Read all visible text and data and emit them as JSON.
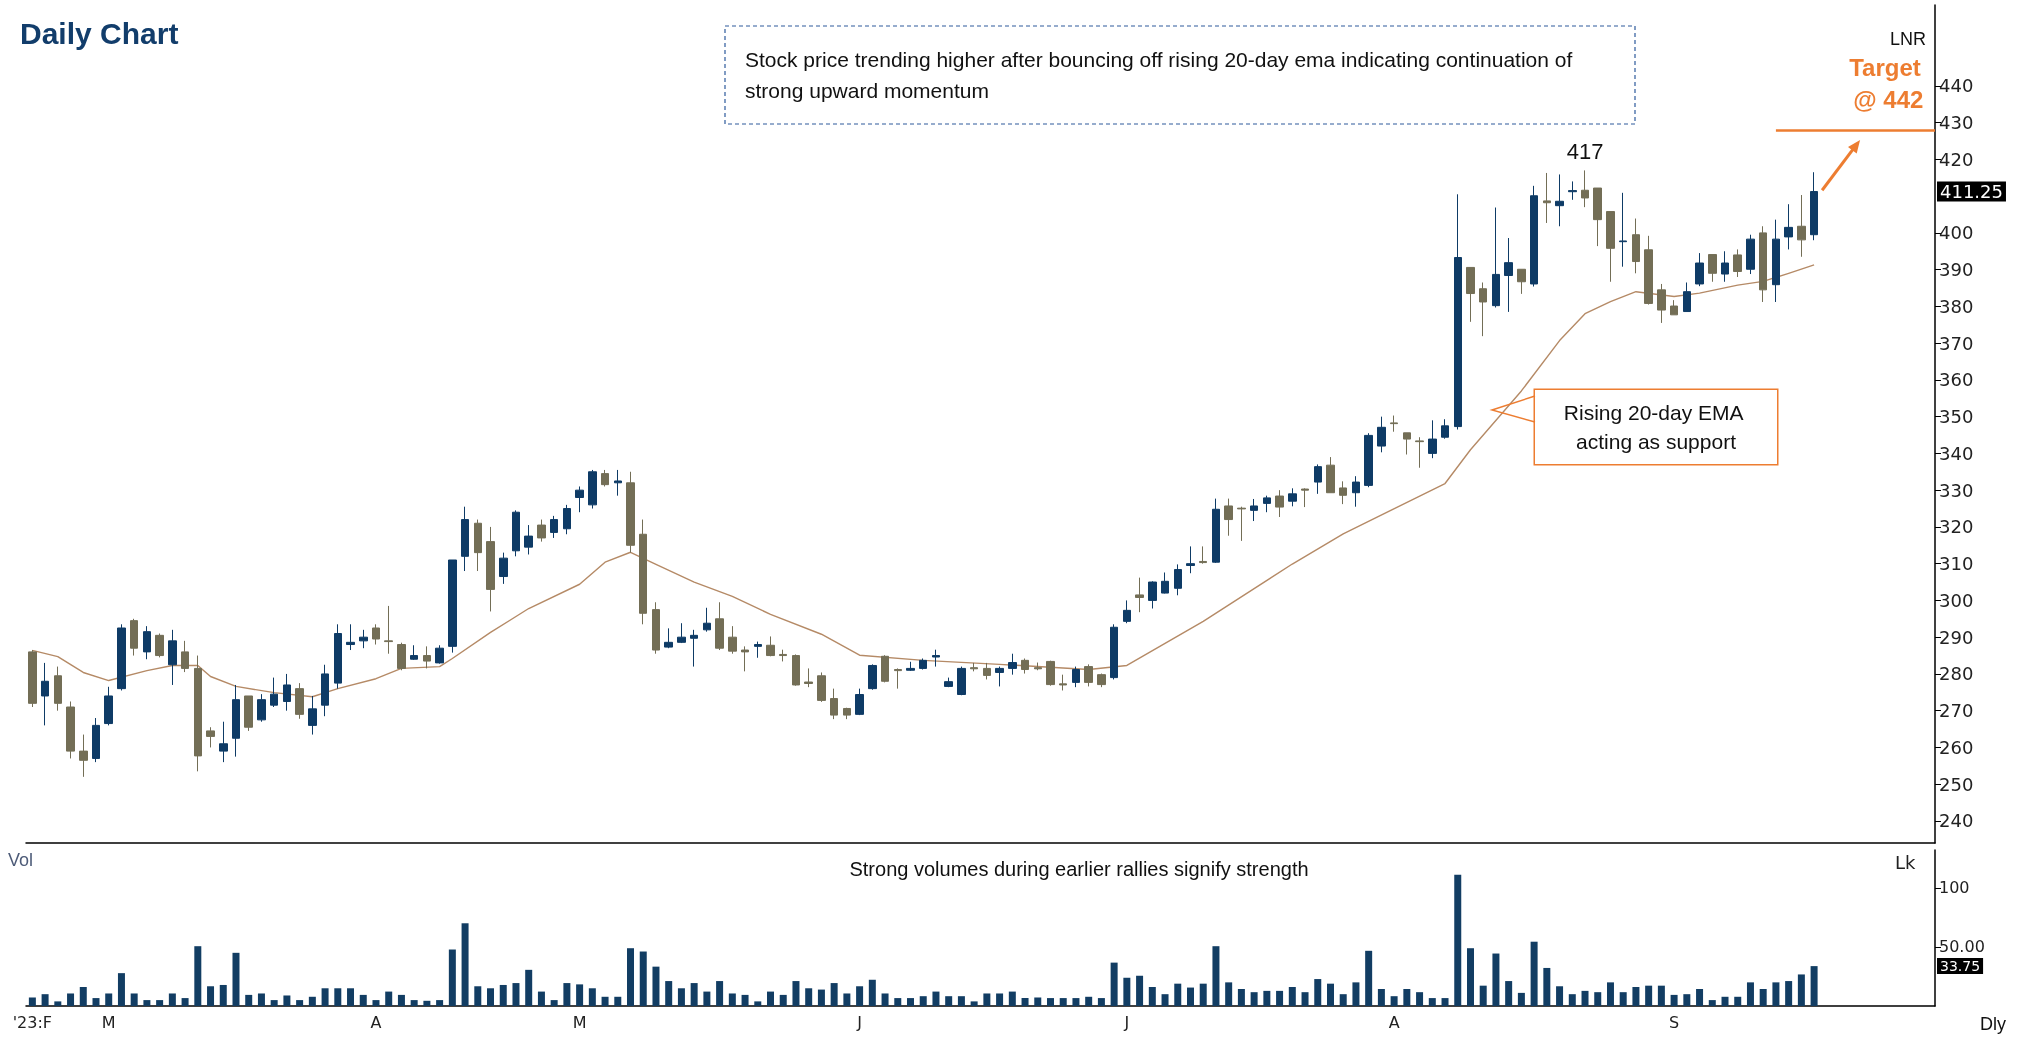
{
  "chart_data": [
    {
      "type": "candlestick",
      "title": "Daily Chart",
      "categories": [
        "'23:F",
        null,
        null,
        null,
        null,
        null,
        "M",
        null,
        null,
        null,
        null,
        null,
        null,
        null,
        null,
        null,
        null,
        null,
        null,
        null,
        null,
        null,
        null,
        null,
        null,
        null,
        null,
        "A",
        null,
        null,
        null,
        null,
        null,
        null,
        null,
        null,
        null,
        null,
        null,
        null,
        null,
        null,
        null,
        "M",
        null,
        null,
        null,
        null,
        null,
        null,
        null,
        null,
        null,
        null,
        null,
        null,
        null,
        null,
        null,
        null,
        null,
        null,
        null,
        null,
        null,
        "J",
        null,
        null,
        null,
        null,
        null,
        null,
        null,
        null,
        null,
        null,
        null,
        null,
        null,
        null,
        null,
        null,
        null,
        null,
        null,
        null,
        "J",
        null,
        null,
        null,
        null,
        null,
        null,
        null,
        null,
        null,
        null,
        null,
        null,
        null,
        null,
        null,
        null,
        null,
        null,
        null,
        null,
        "A",
        null,
        null,
        null,
        null,
        null,
        null,
        null,
        null,
        null,
        null,
        null,
        null,
        null,
        null,
        null,
        null,
        null,
        null,
        null,
        null,
        null,
        "S",
        null,
        null,
        null,
        null,
        null,
        null,
        null,
        null,
        null,
        null,
        null,
        null,
        null,
        null,
        null,
        null,
        null,
        null,
        null,
        null
      ],
      "ohlc": [
        [
          286,
          286.5,
          271,
          272
        ],
        [
          274,
          283,
          266,
          278
        ],
        [
          279.5,
          282,
          270,
          272
        ],
        [
          271,
          272.5,
          257,
          259
        ],
        [
          259,
          263.5,
          252,
          256.5
        ],
        [
          257,
          268,
          256,
          266
        ],
        [
          266.5,
          276.5,
          266,
          274
        ],
        [
          276,
          293.5,
          275.5,
          292.5
        ],
        [
          294.5,
          295,
          285,
          287
        ],
        [
          286,
          293,
          284,
          291.5
        ],
        [
          290.5,
          291,
          284.5,
          285
        ],
        [
          282.5,
          292,
          277,
          289
        ],
        [
          286,
          289,
          280.5,
          281.5
        ],
        [
          281.5,
          285,
          253.5,
          257.7
        ],
        [
          264.5,
          265.5,
          260,
          263
        ],
        [
          259,
          267,
          256,
          261
        ],
        [
          262.5,
          277,
          257.5,
          273
        ],
        [
          274,
          274,
          264.5,
          265.5
        ],
        [
          267.5,
          274.5,
          267,
          273
        ],
        [
          271.5,
          279,
          271,
          274.5
        ],
        [
          272.5,
          280,
          270,
          277
        ],
        [
          276,
          277.5,
          267.8,
          269
        ],
        [
          266,
          274,
          263.5,
          270.5
        ],
        [
          271.5,
          282.5,
          268.5,
          280
        ],
        [
          277.5,
          293.5,
          276,
          291
        ],
        [
          288,
          293.5,
          286.5,
          288.6
        ],
        [
          289,
          292,
          287,
          290
        ],
        [
          292.5,
          293.5,
          288,
          289.5
        ],
        [
          289,
          298.5,
          285.5,
          288.8
        ],
        [
          288,
          288.5,
          281,
          281.5
        ],
        [
          284,
          287.8,
          283.8,
          285
        ],
        [
          285,
          287.5,
          281.5,
          283.5
        ],
        [
          283,
          287.8,
          282.8,
          287
        ],
        [
          287.5,
          311,
          285.8,
          311
        ],
        [
          312,
          325.5,
          308,
          322
        ],
        [
          321,
          322,
          308,
          313
        ],
        [
          316,
          320,
          297,
          303
        ],
        [
          306.5,
          313,
          304.5,
          311.5
        ],
        [
          313.5,
          324.5,
          312,
          324
        ],
        [
          314.5,
          320.5,
          312.5,
          317.5
        ],
        [
          320.5,
          322,
          316,
          317
        ],
        [
          318.5,
          323,
          317,
          322
        ],
        [
          319.5,
          326,
          318,
          325
        ],
        [
          328,
          331,
          324,
          330
        ],
        [
          326,
          335.5,
          325,
          335
        ],
        [
          334.5,
          335.5,
          331,
          331.5
        ],
        [
          332,
          335.5,
          328.5,
          332.5
        ],
        [
          332,
          335,
          313,
          315
        ],
        [
          318,
          322,
          293.5,
          296.5
        ],
        [
          297.5,
          299.5,
          285.5,
          286.5
        ],
        [
          287.3,
          292.4,
          287,
          288.6
        ],
        [
          288.6,
          293.8,
          288.4,
          290
        ],
        [
          289.7,
          292,
          282,
          290.5
        ],
        [
          292,
          298,
          291.5,
          293.8
        ],
        [
          295,
          299.5,
          286.5,
          287
        ],
        [
          290,
          293,
          285.5,
          286.2
        ],
        [
          286.5,
          287.5,
          280.7,
          286
        ],
        [
          287.5,
          288.8,
          284.4,
          288
        ],
        [
          287.8,
          290.2,
          284.8,
          285
        ],
        [
          285.3,
          286.6,
          283.4,
          285
        ],
        [
          285,
          285.3,
          276.8,
          277
        ],
        [
          277.8,
          281.5,
          276.4,
          277.4
        ],
        [
          279.5,
          280.4,
          272.4,
          272.8
        ],
        [
          273.3,
          276,
          267.7,
          268.8
        ],
        [
          270.6,
          270.8,
          267.7,
          268.8
        ],
        [
          269,
          276,
          268.8,
          274.4
        ],
        [
          276,
          282.6,
          275.7,
          282.3
        ],
        [
          284.8,
          285.1,
          277.7,
          278
        ],
        [
          281.2,
          281.5,
          276,
          280.9
        ],
        [
          281,
          283.3,
          280.8,
          281.5
        ],
        [
          281.5,
          284.2,
          281.2,
          283.7
        ],
        [
          284.6,
          286.6,
          282,
          285
        ],
        [
          276.6,
          279,
          276.4,
          277.9
        ],
        [
          274.4,
          282,
          274.2,
          281.5
        ],
        [
          281.7,
          283,
          280.7,
          281.4
        ],
        [
          281.5,
          283,
          278.5,
          279.6
        ],
        [
          280.4,
          282,
          276.6,
          281.5
        ],
        [
          281.5,
          285.5,
          279.8,
          283.1
        ],
        [
          283.7,
          284.2,
          280.1,
          281.2
        ],
        [
          281.7,
          283.1,
          281,
          281.4
        ],
        [
          283.4,
          283.6,
          276.8,
          277.1
        ],
        [
          277.3,
          279.8,
          275.5,
          277
        ],
        [
          277.7,
          282,
          276.4,
          281.2
        ],
        [
          282,
          282.6,
          276.6,
          277.7
        ],
        [
          279.8,
          280.1,
          276.4,
          277.1
        ],
        [
          279,
          293.5,
          278.5,
          292.7
        ],
        [
          294.3,
          300,
          293.8,
          297.3
        ],
        [
          301.5,
          306.2,
          296.8,
          300.8
        ],
        [
          300,
          305.2,
          297.8,
          305
        ],
        [
          302,
          307.6,
          301.9,
          305.2
        ],
        [
          303.3,
          309.8,
          301.4,
          308.4
        ],
        [
          309.5,
          314.7,
          307.4,
          310
        ],
        [
          310.6,
          314.7,
          310,
          310.3
        ],
        [
          310.4,
          327.7,
          310.2,
          324.8
        ],
        [
          325.7,
          327.7,
          317.6,
          322
        ],
        [
          325.1,
          325.5,
          316.2,
          324.9
        ],
        [
          324.5,
          327.6,
          321.6,
          325.7
        ],
        [
          326.4,
          328.5,
          324,
          327.9
        ],
        [
          328.4,
          330,
          322.7,
          325.4
        ],
        [
          327,
          330.5,
          325.6,
          329
        ],
        [
          330.3,
          330.5,
          325.4,
          330
        ],
        [
          332.2,
          337,
          329,
          336.4
        ],
        [
          336.8,
          339,
          329.3,
          329.3
        ],
        [
          330.6,
          332.4,
          326.2,
          328.6
        ],
        [
          329.3,
          333.8,
          325.5,
          332.2
        ],
        [
          331.3,
          345.5,
          330.8,
          344.9
        ],
        [
          342,
          350,
          340.3,
          347.1
        ],
        [
          348.3,
          350.3,
          345.9,
          348.1
        ],
        [
          345.6,
          345.6,
          339.7,
          343.9
        ],
        [
          343.4,
          344.4,
          336.1,
          343.2
        ],
        [
          340,
          349,
          338.7,
          343.9
        ],
        [
          344.4,
          349.3,
          344,
          347.5
        ],
        [
          347.3,
          410.5,
          346.5,
          393.3
        ],
        [
          390.6,
          390.6,
          375.8,
          383.5
        ],
        [
          384.8,
          386.5,
          371.9,
          381.2
        ],
        [
          380.2,
          406.9,
          379.7,
          388.7
        ],
        [
          388.4,
          398.6,
          378.5,
          391.9
        ],
        [
          390.1,
          390.1,
          383.4,
          386.7
        ],
        [
          386.1,
          412.8,
          385.4,
          410.1
        ],
        [
          408.7,
          416.3,
          402.7,
          408.2
        ],
        [
          407.4,
          415.9,
          401.8,
          408.6
        ],
        [
          411.2,
          414,
          409,
          411.5
        ],
        [
          411.6,
          417,
          407,
          409.5
        ],
        [
          412.2,
          412.2,
          396.4,
          403.6
        ],
        [
          405.8,
          405.8,
          386.7,
          395.8
        ],
        [
          397.6,
          410.9,
          390.8,
          397.8
        ],
        [
          399.5,
          403.9,
          389,
          392.2
        ],
        [
          395.4,
          399.2,
          380.5,
          380.8
        ],
        [
          384.5,
          386.1,
          375.5,
          379
        ],
        [
          380.1,
          381.7,
          377.7,
          377.7
        ],
        [
          378.6,
          386.5,
          378.6,
          384
        ],
        [
          386.1,
          394.5,
          385.5,
          391.8
        ],
        [
          394.1,
          394.1,
          386.7,
          389
        ],
        [
          388.8,
          395,
          386.7,
          391.8
        ],
        [
          394,
          395.5,
          388,
          389.5
        ],
        [
          390.1,
          399.5,
          388.8,
          398.3
        ],
        [
          400,
          401.8,
          381.2,
          384.5
        ],
        [
          385.9,
          403.6,
          381.2,
          398.3
        ],
        [
          398.9,
          407.8,
          395.5,
          401.5
        ],
        [
          401.8,
          410.3,
          393.5,
          398.1
        ],
        [
          399.5,
          416.5,
          398,
          411.25
        ],
        null,
        null,
        null,
        null,
        null,
        null,
        null,
        null,
        null
      ],
      "colors": [
        "#736e56",
        "#0e3b66",
        "#736e56",
        "#736e56",
        "#736e56",
        "#0e3b66",
        "#0e3b66",
        "#0e3b66",
        "#736e56",
        "#0e3b66",
        "#736e56",
        "#0e3b66",
        "#736e56",
        "#736e56",
        "#736e56",
        "#0e3b66",
        "#0e3b66",
        "#736e56",
        "#0e3b66",
        "#0e3b66",
        "#0e3b66",
        "#736e56",
        "#0e3b66",
        "#0e3b66",
        "#0e3b66",
        "#0e3b66",
        "#0e3b66",
        "#736e56",
        "#736e56",
        "#736e56",
        "#0e3b66",
        "#736e56",
        "#0e3b66",
        "#0e3b66",
        "#0e3b66",
        "#736e56",
        "#736e56",
        "#0e3b66",
        "#0e3b66",
        "#0e3b66",
        "#736e56",
        "#0e3b66",
        "#0e3b66",
        "#0e3b66",
        "#0e3b66",
        "#736e56",
        "#0e3b66",
        "#736e56",
        "#736e56",
        "#736e56",
        "#0e3b66",
        "#0e3b66",
        "#0e3b66",
        "#0e3b66",
        "#736e56",
        "#736e56",
        "#736e56",
        "#0e3b66",
        "#736e56",
        "#736e56",
        "#736e56",
        "#736e56",
        "#736e56",
        "#736e56",
        "#736e56",
        "#0e3b66",
        "#0e3b66",
        "#736e56",
        "#736e56",
        "#0e3b66",
        "#0e3b66",
        "#0e3b66",
        "#0e3b66",
        "#0e3b66",
        "#736e56",
        "#736e56",
        "#0e3b66",
        "#0e3b66",
        "#736e56",
        "#736e56",
        "#736e56",
        "#736e56",
        "#0e3b66",
        "#736e56",
        "#736e56",
        "#0e3b66",
        "#0e3b66",
        "#736e56",
        "#0e3b66",
        "#0e3b66",
        "#0e3b66",
        "#0e3b66",
        "#736e56",
        "#0e3b66",
        "#736e56",
        "#736e56",
        "#0e3b66",
        "#0e3b66",
        "#736e56",
        "#0e3b66",
        "#736e56",
        "#0e3b66",
        "#736e56",
        "#736e56",
        "#0e3b66",
        "#0e3b66",
        "#0e3b66",
        "#736e56",
        "#736e56",
        "#736e56",
        "#0e3b66",
        "#0e3b66",
        "#0e3b66",
        "#736e56",
        "#736e56",
        "#0e3b66",
        "#0e3b66",
        "#736e56",
        "#0e3b66",
        "#736e56",
        "#0e3b66",
        "#0e3b66",
        "#736e56",
        "#736e56",
        "#736e56",
        "#0e3b66",
        "#736e56",
        "#736e56",
        "#736e56",
        "#736e56",
        "#0e3b66",
        "#0e3b66",
        "#736e56",
        "#0e3b66",
        "#736e56",
        "#0e3b66",
        "#736e56",
        "#0e3b66",
        "#0e3b66",
        "#736e56",
        "#0e3b66",
        null,
        null,
        null,
        null,
        null,
        null,
        null,
        null,
        null
      ],
      "series": [
        {
          "type": "line",
          "color": "#b58a66",
          "values": [
            286.4,
            null,
            284.7,
            null,
            280.4,
            null,
            278.2,
            null,
            null,
            280.9,
            null,
            282.3,
            null,
            282.3,
            279.3,
            null,
            276.6,
            null,
            null,
            274.9,
            null,
            null,
            273.8,
            null,
            276,
            null,
            null,
            278.7,
            null,
            281.5,
            null,
            null,
            282,
            284.2,
            null,
            null,
            291.3,
            null,
            null,
            297.8,
            null,
            null,
            null,
            304.4,
            null,
            310.4,
            null,
            313.1,
            null,
            309.8,
            null,
            null,
            305,
            null,
            null,
            301.1,
            null,
            null,
            296.2,
            null,
            null,
            null,
            290.8,
            null,
            null,
            285.1,
            null,
            null,
            null,
            null,
            283.7,
            null,
            null,
            null,
            null,
            null,
            282.6,
            null,
            null,
            null,
            null,
            null,
            null,
            281.2,
            null,
            null,
            282.3,
            null,
            null,
            null,
            null,
            null,
            294.3,
            null,
            null,
            null,
            null,
            null,
            null,
            309.9,
            null,
            null,
            null,
            318.1,
            null,
            null,
            null,
            null,
            null,
            null,
            null,
            331.8,
            null,
            341,
            null,
            null,
            null,
            357,
            null,
            null,
            370.7,
            null,
            378,
            null,
            381.3,
            null,
            384,
            null,
            null,
            382.7,
            null,
            383.6,
            null,
            null,
            385.8,
            null,
            386.8,
            null,
            389,
            null,
            391.3,
            null,
            null,
            null,
            null,
            null,
            null,
            null,
            null,
            null
          ]
        }
      ],
      "ylim": [
        234,
        462
      ],
      "yticks": [
        240,
        250,
        260,
        270,
        280,
        290,
        300,
        310,
        320,
        330,
        340,
        350,
        360,
        370,
        380,
        390,
        400,
        420,
        430,
        440
      ],
      "tick_labels": "y",
      "ref_lines": [
        {
          "axis": "y",
          "value": 428,
          "label": "Target @ 442",
          "color": "#ed7d31"
        }
      ],
      "annotations": [
        "Stock price trending higher after bouncing off rising 20-day ema indicating continuation of strong upward momentum",
        "Rising 20-day EMA acting as support",
        "417",
        "411.25",
        "LNR"
      ]
    },
    {
      "type": "bar",
      "title": "Vol",
      "ylabel": "Lk",
      "color": "#123d63",
      "categories": [
        "'23:F",
        null,
        null,
        null,
        null,
        null,
        "M",
        null,
        null,
        null,
        null,
        null,
        null,
        null,
        null,
        null,
        null,
        null,
        null,
        null,
        null,
        null,
        null,
        null,
        null,
        null,
        null,
        "A",
        null,
        null,
        null,
        null,
        null,
        null,
        null,
        null,
        null,
        null,
        null,
        null,
        null,
        null,
        null,
        "M",
        null,
        null,
        null,
        null,
        null,
        null,
        null,
        null,
        null,
        null,
        null,
        null,
        null,
        null,
        null,
        null,
        null,
        null,
        null,
        null,
        null,
        "J",
        null,
        null,
        null,
        null,
        null,
        null,
        null,
        null,
        null,
        null,
        null,
        null,
        null,
        null,
        null,
        null,
        null,
        null,
        null,
        null,
        "J",
        null,
        null,
        null,
        null,
        null,
        null,
        null,
        null,
        null,
        null,
        null,
        null,
        null,
        null,
        null,
        null,
        null,
        null,
        null,
        null,
        "A",
        null,
        null,
        null,
        null,
        null,
        null,
        null,
        null,
        null,
        null,
        null,
        null,
        null,
        null,
        null,
        null,
        null,
        null,
        null,
        null,
        null,
        "S",
        null,
        null,
        null,
        null,
        null,
        null,
        null,
        null,
        null,
        null,
        null,
        null,
        null,
        null,
        null,
        null,
        null,
        null,
        null,
        null
      ],
      "values": [
        7.2,
        10,
        3.9,
        10.6,
        16.1,
        6.7,
        10.6,
        27.8,
        10.6,
        5,
        5,
        10.6,
        6.7,
        50.6,
        16.7,
        17.8,
        45,
        9.4,
        10.6,
        5,
        8.9,
        5,
        7.8,
        15,
        15,
        15,
        9.4,
        5,
        12.2,
        9.4,
        5,
        4.4,
        5,
        47.8,
        70,
        16.7,
        15,
        17.8,
        19.4,
        30.6,
        12.2,
        5,
        19.4,
        18.3,
        15,
        7.8,
        7.8,
        48.9,
        46.1,
        33.3,
        21.1,
        15,
        19.4,
        12.2,
        21.1,
        10.6,
        9.4,
        3.9,
        12.2,
        9.4,
        21.1,
        15,
        13.9,
        19.4,
        10.6,
        16.7,
        22.2,
        10.6,
        6.7,
        6.7,
        8.3,
        12.2,
        8.3,
        8.3,
        3.9,
        10.6,
        10.6,
        12.2,
        6.7,
        7.2,
        6.7,
        6.7,
        6.7,
        7.8,
        6.7,
        36.7,
        23.9,
        25.6,
        16.1,
        10,
        18.9,
        15.6,
        18.9,
        50.6,
        20,
        14.4,
        11.7,
        12.8,
        12.8,
        16.1,
        11.7,
        22.8,
        18.9,
        10,
        20,
        46.7,
        14.4,
        8.3,
        14.4,
        11.7,
        6.7,
        6.7,
        111.1,
        48.9,
        17.2,
        44.4,
        21.1,
        11.1,
        54.4,
        32.2,
        16.7,
        10,
        12.8,
        11.7,
        20,
        11.7,
        16.1,
        17.2,
        17.2,
        9.4,
        10,
        14.4,
        5,
        7.8,
        7.8,
        20,
        14.4,
        20,
        21.1,
        26.7,
        33.75,
        null,
        null,
        null,
        null,
        null,
        null,
        null,
        null,
        null
      ],
      "ylim": [
        0,
        132
      ],
      "yticks": [
        100,
        {
          "value": 50,
          "label": "50.00"
        }
      ],
      "annotations": [
        "Strong volumes during earlier rallies signify strength",
        "33.75",
        "Dly"
      ]
    }
  ]
}
